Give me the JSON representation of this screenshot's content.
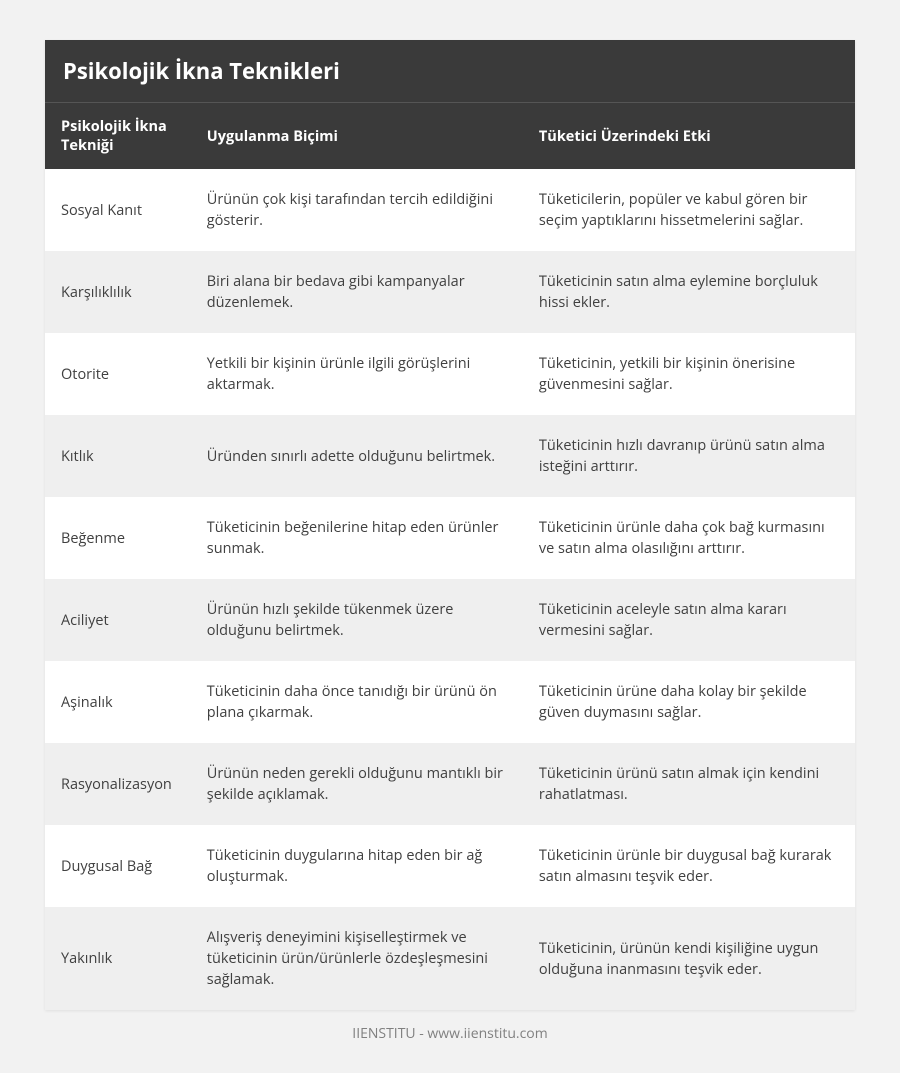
{
  "table": {
    "title": "Psikolojik İkna Teknikleri",
    "columns": [
      "Psikolojik İkna Tekniği",
      "Uygulanma Biçimi",
      "Tüketici Üzerindeki Etki"
    ],
    "rows": [
      [
        "Sosyal Kanıt",
        "Ürünün çok kişi tarafından tercih edildiğini gösterir.",
        "Tüketicilerin, popüler ve kabul gören bir seçim yaptıklarını hissetmelerini sağlar."
      ],
      [
        "Karşılıklılık",
        "Biri alana bir bedava gibi kampanyalar düzenlemek.",
        "Tüketicinin satın alma eylemine borçluluk hissi ekler."
      ],
      [
        "Otorite",
        "Yetkili bir kişinin ürünle ilgili görüşlerini aktarmak.",
        "Tüketicinin, yetkili bir kişinin önerisine güvenmesini sağlar."
      ],
      [
        "Kıtlık",
        "Üründen sınırlı adette olduğunu belirtmek.",
        "Tüketicinin hızlı davranıp ürünü satın alma isteğini arttırır."
      ],
      [
        "Beğenme",
        "Tüketicinin beğenilerine hitap eden ürünler sunmak.",
        "Tüketicinin ürünle daha çok bağ kurmasını ve satın alma olasılığını arttırır."
      ],
      [
        "Aciliyet",
        "Ürünün hızlı şekilde tükenmek üzere olduğunu belirtmek.",
        "Tüketicinin aceleyle satın alma kararı vermesini sağlar."
      ],
      [
        "Aşinalık",
        "Tüketicinin daha önce tanıdığı bir ürünü ön plana çıkarmak.",
        "Tüketicinin ürüne daha kolay bir şekilde güven duymasını sağlar."
      ],
      [
        "Rasyonalizasyon",
        "Ürünün neden gerekli olduğunu mantıklı bir şekilde açıklamak.",
        "Tüketicinin ürünü satın almak için kendini rahatlatması."
      ],
      [
        "Duygusal Bağ",
        "Tüketicinin duygularına hitap eden bir ağ oluşturmak.",
        "Tüketicinin ürünle bir duygusal bağ kurarak satın almasını teşvik eder."
      ],
      [
        "Yakınlık",
        "Alışveriş deneyimini kişiselleştirmek ve tüketicinin ürün/ürünlerle özdeşleşmesini sağlamak.",
        "Tüketicinin, ürünün kendi kişiliğine uygun olduğuna inanmasını teşvik eder."
      ]
    ],
    "styling": {
      "page_background": "#f2f2f2",
      "title_background": "#3a3a3a",
      "title_color": "#ffffff",
      "title_fontsize": 22,
      "header_background": "#3a3a3a",
      "header_color": "#ffffff",
      "header_fontsize": 14.5,
      "row_odd_background": "#ffffff",
      "row_even_background": "#efefef",
      "cell_text_color": "#404040",
      "cell_fontsize": 14.5,
      "column_widths_percent": [
        18,
        41,
        41
      ],
      "footer_color": "#808080",
      "footer_fontsize": 14
    }
  },
  "footer": "IIENSTITU - www.iienstitu.com"
}
